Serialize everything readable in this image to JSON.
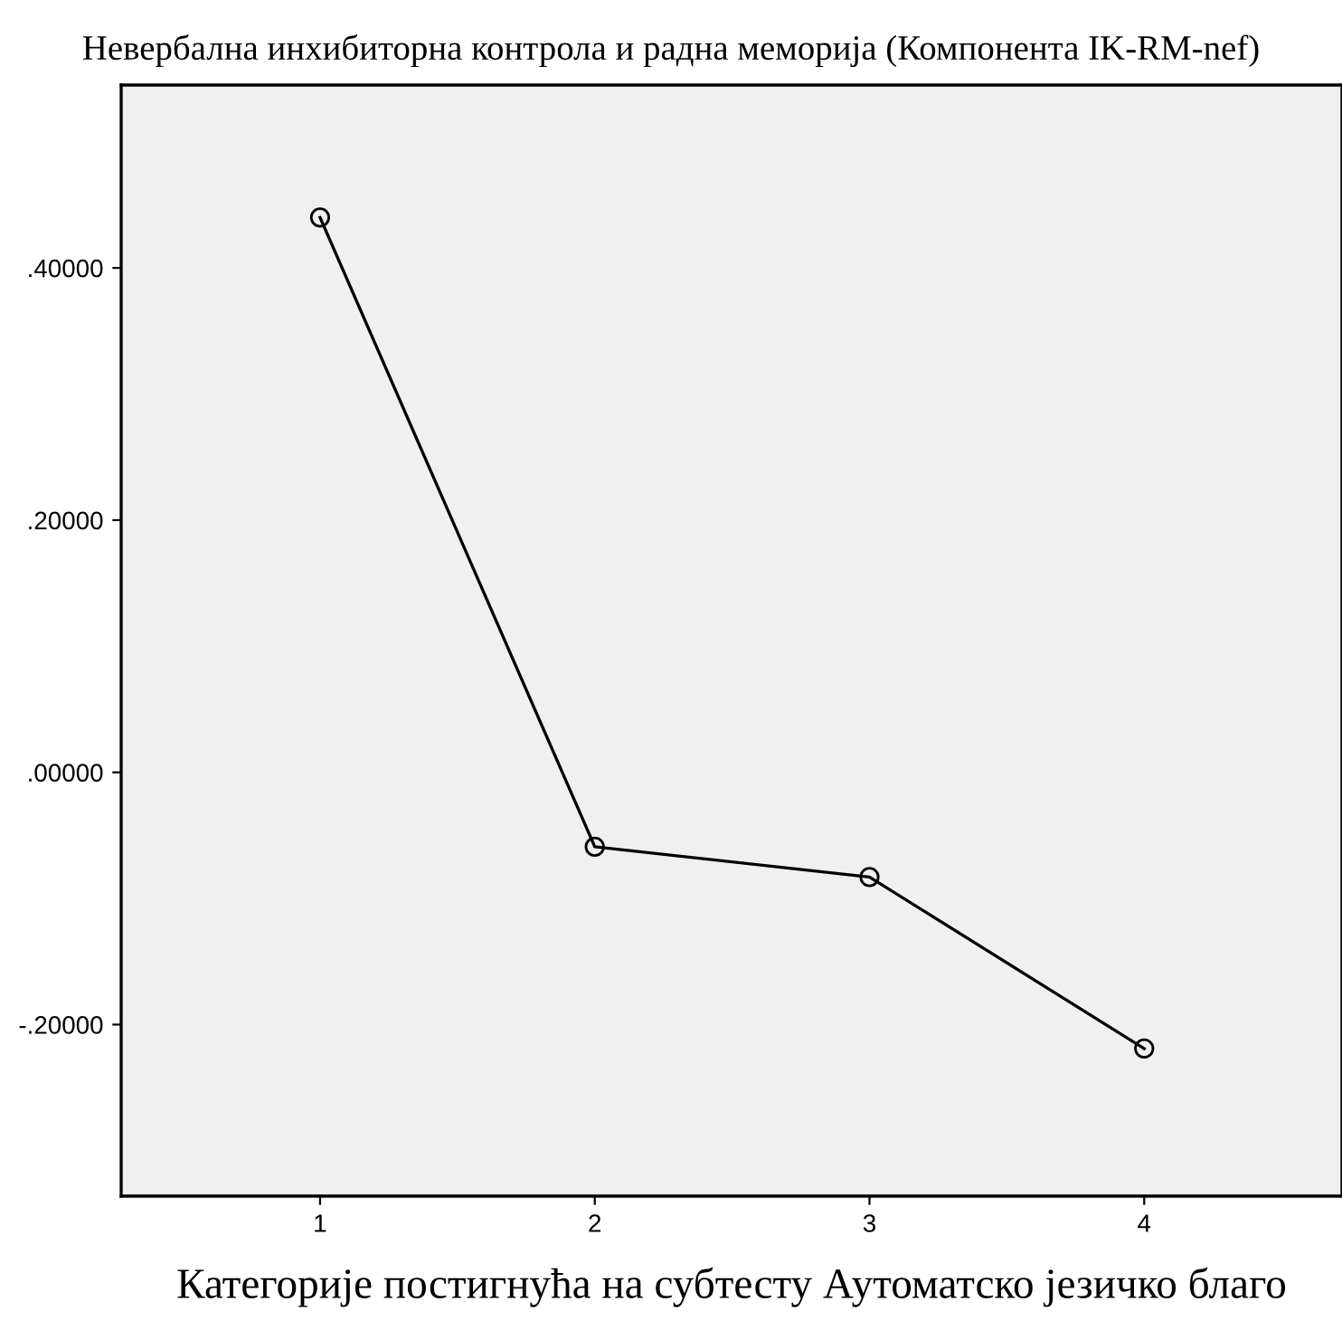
{
  "chart_data": {
    "type": "line",
    "title": "Невербална инхибиторна контрола и радна меморија (Компонента IK-RM-nef)",
    "xlabel": "Категорије постигнућа на субтесту Аутоматско језичко благо",
    "categories": [
      "1",
      "2",
      "3",
      "4"
    ],
    "series": [
      {
        "color": "#000000",
        "values": [
          0.44,
          -0.059,
          -0.083,
          -0.219
        ]
      }
    ],
    "ylim": [
      -0.336,
      0.545
    ],
    "yticks": [
      {
        "value": -0.2,
        "label": "-.20000"
      },
      {
        "value": 0.0,
        "label": ".00000"
      },
      {
        "value": 0.2,
        "label": ".20000"
      },
      {
        "value": 0.4,
        "label": ".40000"
      }
    ],
    "marker": "circle",
    "line_style": "solid",
    "grid": false,
    "legend": false
  }
}
